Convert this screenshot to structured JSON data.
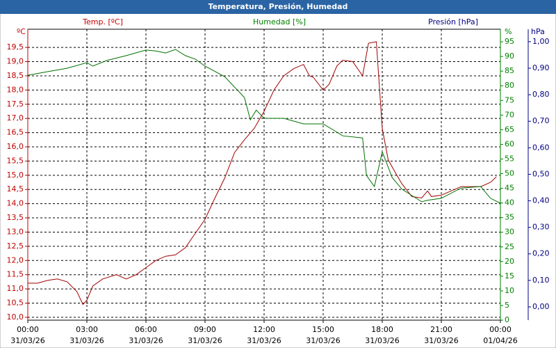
{
  "chart_data": {
    "type": "line",
    "title": "Temperatura, Presión, Humedad",
    "ylabel": "Temp. [ºC]",
    "y2label": "Humedad [%]",
    "y3label": "Presión [hPa]",
    "yunit": "ºC",
    "y2unit": "%",
    "y3unit": "hPa",
    "xlim": [
      0,
      24
    ],
    "xticks": [
      {
        "value": 0,
        "label": "00:00"
      },
      {
        "value": 3,
        "label": "03:00"
      },
      {
        "value": 6,
        "label": "06:00"
      },
      {
        "value": 9,
        "label": "09:00"
      },
      {
        "value": 12,
        "label": "12:00"
      },
      {
        "value": 15,
        "label": "15:00"
      },
      {
        "value": 18,
        "label": "18:00"
      },
      {
        "value": 21,
        "label": "21:00"
      },
      {
        "value": 24,
        "label": "00:00"
      }
    ],
    "xtick_dates": [
      "31/03/26",
      "31/03/26",
      "31/03/26",
      "31/03/26",
      "31/03/26",
      "31/03/26",
      "31/03/26",
      "31/03/26",
      "01/04/26"
    ],
    "ylim": [
      9.9,
      20.14
    ],
    "yticks": [
      {
        "value": 10,
        "label": "10,0"
      },
      {
        "value": 10.5,
        "label": "10,5"
      },
      {
        "value": 11,
        "label": "11,0"
      },
      {
        "value": 11.5,
        "label": "11,5"
      },
      {
        "value": 12,
        "label": "12,0"
      },
      {
        "value": 12.5,
        "label": "12,5"
      },
      {
        "value": 13,
        "label": "13,0"
      },
      {
        "value": 13.5,
        "label": "13,5"
      },
      {
        "value": 14,
        "label": "14,0"
      },
      {
        "value": 14.5,
        "label": "14,5"
      },
      {
        "value": 15,
        "label": "15,0"
      },
      {
        "value": 15.5,
        "label": "15,5"
      },
      {
        "value": 16,
        "label": "16,0"
      },
      {
        "value": 16.5,
        "label": "16,5"
      },
      {
        "value": 17,
        "label": "17,0"
      },
      {
        "value": 17.5,
        "label": "17,5"
      },
      {
        "value": 18,
        "label": "18,0"
      },
      {
        "value": 18.5,
        "label": "18,5"
      },
      {
        "value": 19,
        "label": "19,0"
      },
      {
        "value": 19.5,
        "label": "19,5"
      }
    ],
    "y2lim": [
      0,
      99.3
    ],
    "y2ticks": [
      0,
      5,
      10,
      15,
      20,
      25,
      30,
      35,
      40,
      45,
      50,
      55,
      60,
      65,
      70,
      75,
      80,
      85,
      90,
      95
    ],
    "y3lim": [
      -0.05,
      1.047
    ],
    "y3ticks": [
      {
        "value": 0,
        "label": "0,00"
      },
      {
        "value": 0.1,
        "label": "0,10"
      },
      {
        "value": 0.2,
        "label": "0,20"
      },
      {
        "value": 0.3,
        "label": "0,30"
      },
      {
        "value": 0.4,
        "label": "0,40"
      },
      {
        "value": 0.5,
        "label": "0,50"
      },
      {
        "value": 0.6,
        "label": "0,60"
      },
      {
        "value": 0.7,
        "label": "0,70"
      },
      {
        "value": 0.8,
        "label": "0,80"
      },
      {
        "value": 0.9,
        "label": "0,90"
      },
      {
        "value": 1,
        "label": "1,00"
      }
    ],
    "colors": {
      "y": "#c00000",
      "y2": "#008000",
      "y3": "#000080"
    },
    "grid": true,
    "series": [
      {
        "color": "#a00000",
        "axis": "y",
        "x": [
          0,
          0.5,
          1,
          1.5,
          2,
          2.5,
          2.8,
          3,
          3.3,
          3.8,
          4.5,
          5,
          5.5,
          6,
          6.5,
          7,
          7.5,
          8,
          8.5,
          9,
          9.5,
          10,
          10.5,
          11,
          11.5,
          12,
          12.5,
          13,
          13.5,
          14,
          14.3,
          14.5,
          15,
          15.3,
          15.7,
          16,
          16.5,
          17,
          17.3,
          17.7,
          18,
          18.3,
          18.7,
          19,
          19.5,
          20,
          20.3,
          20.5,
          21,
          21.5,
          22,
          22.5,
          23,
          23.5,
          23.8
        ],
        "values": [
          11.2,
          11.2,
          11.3,
          11.35,
          11.25,
          10.9,
          10.45,
          10.6,
          11.1,
          11.35,
          11.5,
          11.35,
          11.5,
          11.75,
          12.0,
          12.15,
          12.2,
          12.45,
          12.95,
          13.45,
          14.2,
          14.9,
          15.8,
          16.25,
          16.65,
          17.25,
          18.0,
          18.5,
          18.75,
          18.9,
          18.5,
          18.45,
          18.0,
          18.2,
          18.85,
          19.05,
          19.0,
          18.5,
          19.65,
          19.7,
          16.65,
          15.55,
          15.05,
          14.7,
          14.25,
          14.2,
          14.45,
          14.25,
          14.3,
          14.45,
          14.6,
          14.6,
          14.6,
          14.75,
          14.95
        ]
      },
      {
        "color": "#007000",
        "axis": "y2",
        "x": [
          0,
          1,
          2,
          3,
          3.3,
          4,
          5,
          6,
          6.5,
          7,
          7.5,
          8,
          8.5,
          9,
          10,
          11,
          11.3,
          11.6,
          12,
          13,
          14,
          15,
          16,
          17,
          17.2,
          17.6,
          18,
          18.5,
          19,
          20,
          20.3,
          21,
          22,
          23,
          23.5,
          24
        ],
        "values": [
          83.6,
          84.8,
          86,
          87.9,
          86.7,
          88.6,
          90.3,
          92.2,
          91.9,
          91.2,
          92.4,
          90.3,
          89.1,
          86.7,
          83.1,
          76,
          68.4,
          71.7,
          68.9,
          68.9,
          67,
          67,
          62.9,
          62.2,
          49.4,
          45.6,
          57.5,
          48.7,
          44.7,
          40.4,
          40.9,
          41.6,
          45.1,
          45.6,
          41.6,
          39.9
        ]
      }
    ]
  }
}
